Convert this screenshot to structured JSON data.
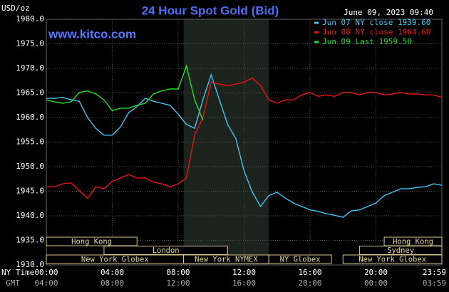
{
  "chart_data": {
    "type": "line",
    "title": "24 Hour Spot Gold (Bid)",
    "timestamp": "June 09, 2023 09:40",
    "y_label": "USD/oz",
    "watermark": "www.kitco.com",
    "x_label": "NY Time",
    "x2_label": "GMT",
    "xlim": [
      0,
      24
    ],
    "ylim": [
      1930,
      1980
    ],
    "grid": true,
    "background": "#000000",
    "highlight": [
      8.33,
      13.5
    ],
    "highlight_color": "#1c231c",
    "xticks": [
      {
        "value": 0,
        "label": "00:00"
      },
      {
        "value": 4,
        "label": "04:00"
      },
      {
        "value": 8,
        "label": "08:00"
      },
      {
        "value": 12,
        "label": "12:00"
      },
      {
        "value": 16,
        "label": "16:00"
      },
      {
        "value": 20,
        "label": "20:00"
      },
      {
        "value": 23.98,
        "label": "23:59"
      }
    ],
    "x2ticks": [
      {
        "value": 0,
        "label": "04:00"
      },
      {
        "value": 4,
        "label": "08:00"
      },
      {
        "value": 8,
        "label": "12:00"
      },
      {
        "value": 12,
        "label": "16:00"
      },
      {
        "value": 16,
        "label": "20:00"
      },
      {
        "value": 20,
        "label": "00:00"
      },
      {
        "value": 23.98,
        "label": "03:59"
      }
    ],
    "yticks": [
      {
        "value": 1930,
        "label": "1930.0"
      },
      {
        "value": 1935,
        "label": "1935.0"
      },
      {
        "value": 1940,
        "label": "1940.0"
      },
      {
        "value": 1945,
        "label": "1945.0"
      },
      {
        "value": 1950,
        "label": "1950.0"
      },
      {
        "value": 1955,
        "label": "1955.0"
      },
      {
        "value": 1960,
        "label": "1960.0"
      },
      {
        "value": 1965,
        "label": "1965.0"
      },
      {
        "value": 1970,
        "label": "1970.0"
      },
      {
        "value": 1975,
        "label": "1975.0"
      },
      {
        "value": 1980,
        "label": "1980.0"
      }
    ],
    "x": [
      0,
      0.5,
      1,
      1.5,
      2,
      2.5,
      3,
      3.5,
      4,
      4.5,
      5,
      5.5,
      6,
      6.5,
      7,
      7.5,
      8,
      8.5,
      9,
      9.5,
      10,
      10.5,
      11,
      11.5,
      12,
      12.5,
      13,
      13.5,
      14,
      14.5,
      15,
      15.5,
      16,
      16.5,
      17,
      17.5,
      18,
      18.5,
      19,
      19.5,
      20,
      20.5,
      21,
      21.5,
      22,
      22.5,
      23,
      23.5,
      24
    ],
    "series": [
      {
        "name": "Jun 07 NY close 1939.60",
        "color": "#3fc6f2",
        "values": [
          1963.9,
          1963.9,
          1964.1,
          1963.6,
          1963.3,
          1960,
          1957.8,
          1956.4,
          1956.4,
          1958.1,
          1961,
          1962.2,
          1963.9,
          1963.3,
          1962.9,
          1962.5,
          1960.7,
          1958.6,
          1957.8,
          1963.6,
          1968.7,
          1963.6,
          1958.6,
          1955.7,
          1949.1,
          1944.8,
          1941.9,
          1944.1,
          1944.8,
          1943.6,
          1942.6,
          1941.9,
          1941.2,
          1940.9,
          1940.4,
          1940.1,
          1939.7,
          1941,
          1941.2,
          1941.9,
          1942.6,
          1944.1,
          1944.8,
          1945.5,
          1945.5,
          1945.8,
          1945.9,
          1946.5,
          1946.2
        ]
      },
      {
        "name": "Jun 08 NY close 1964.60",
        "color": "#e81414",
        "values": [
          1945.9,
          1945.9,
          1946.5,
          1946.7,
          1945.1,
          1943.6,
          1945.9,
          1945.5,
          1947,
          1947.7,
          1948.4,
          1947.7,
          1947.7,
          1946.8,
          1946.5,
          1945.9,
          1946.5,
          1947.7,
          1956.4,
          1960,
          1967.2,
          1966.8,
          1966.5,
          1966.8,
          1967.2,
          1968,
          1966.5,
          1963.6,
          1962.9,
          1963.6,
          1963.6,
          1964.6,
          1965.1,
          1964.3,
          1964.6,
          1964.3,
          1965.1,
          1965.1,
          1964.6,
          1965.1,
          1965.1,
          1964.6,
          1964.8,
          1965.1,
          1964.8,
          1964.8,
          1964.6,
          1964.6,
          1964.1
        ]
      },
      {
        "name": "Jun 09 Last 1959.50",
        "color": "#22e022",
        "values": [
          1963.6,
          1963.2,
          1962.9,
          1963.2,
          1965.1,
          1965.4,
          1964.8,
          1963.6,
          1961.4,
          1961.9,
          1961.9,
          1962.5,
          1962.9,
          1964.8,
          1965.4,
          1965.8,
          1965.8,
          1970.5,
          1963.6,
          1959.5,
          null,
          null,
          null,
          null,
          null,
          null,
          null,
          null,
          null,
          null,
          null,
          null,
          null,
          null,
          null,
          null,
          null,
          null,
          null,
          null,
          null,
          null,
          null,
          null,
          null,
          null,
          null,
          null,
          null
        ]
      }
    ],
    "sessions": [
      [
        {
          "label": "Hong Kong",
          "start": 0,
          "end": 5.5
        },
        {
          "label": "Hong Kong",
          "start": 20.5,
          "end": 24
        }
      ],
      [
        {
          "label": "London",
          "start": 3.5,
          "end": 11
        },
        {
          "label": "Sydney",
          "start": 19,
          "end": 24
        }
      ],
      [
        {
          "label": "New York Globex",
          "start": 0,
          "end": 8.33
        },
        {
          "label": "New York NYMEX",
          "start": 8.33,
          "end": 13.5
        },
        {
          "label": "NY Globex",
          "start": 13.5,
          "end": 17.3
        },
        {
          "label": "New York Globex",
          "start": 18,
          "end": 24
        }
      ]
    ]
  }
}
